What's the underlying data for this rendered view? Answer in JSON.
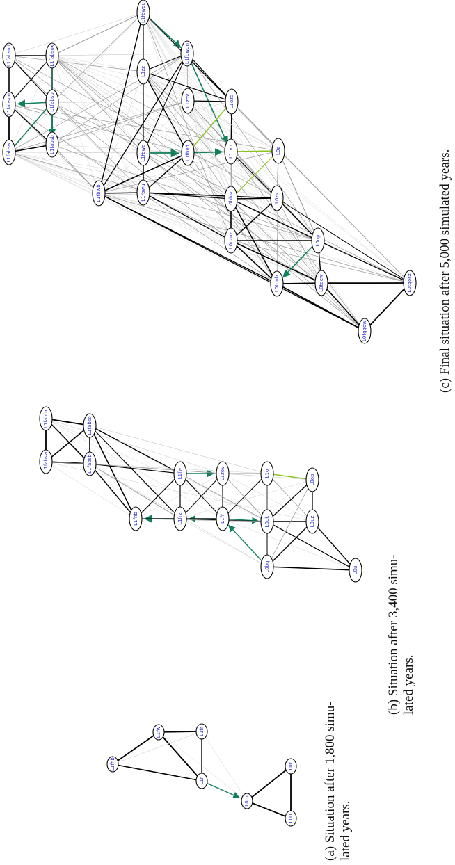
{
  "captions": {
    "a_line1": "(a) Situation after 1,800 simu-",
    "a_line2": "lated years.",
    "b_line1": "(b) Situation after 3,400 simu-",
    "b_line2": "lated years.",
    "c": "(c) Final situation after 5,000 simulated years."
  },
  "graphs": {
    "a": {
      "nodes": [
        "L1fnb",
        "L1fw",
        "L1fr",
        "L1r",
        "L0to",
        "L0r",
        "L0u"
      ]
    },
    "b": {
      "nodes": [
        "L1fabsw",
        "L1fabox",
        "L1fabsb",
        "L1fabso",
        "L1fnb",
        "L1fw",
        "L1frz",
        "L1fr",
        "L1zov",
        "L1o",
        "L0bq",
        "L0ok",
        "L0uz",
        "L0u",
        "L0op"
      ]
    },
    "c": {
      "nodes": [
        "L1fabsw",
        "L1fabsoo",
        "L1fabsod",
        "L1fabsox",
        "L1fabso",
        "L1fabsb",
        "L1fbwb",
        "L1fbwu",
        "L1fbwd",
        "L1fbwou",
        "L1fbwqn",
        "L1fbvd",
        "L1zz",
        "L1rvo",
        "L1ozd",
        "L1zov",
        "L0z",
        "L0zs",
        "L0bbsu",
        "L0ozoz",
        "L0op",
        "L0tqob",
        "L0tqew",
        "L0tqqow",
        "L0tqosz"
      ]
    },
    "edge_colors": {
      "black": "#000000",
      "grey": "#9a9a9a",
      "light": "#cfcfcf",
      "teal": "#10805a",
      "lime": "#8cc21e"
    }
  }
}
